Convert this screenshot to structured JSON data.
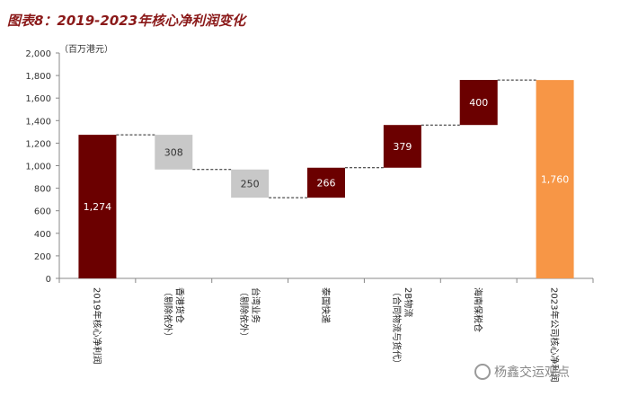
{
  "figure": {
    "title": "图表8：2019-2023年核心净利润变化",
    "unit": "（百万港元）",
    "watermark": "杨鑫交运观点"
  },
  "chart_data": {
    "type": "waterfall",
    "ylim": [
      0,
      2000
    ],
    "yticks": [
      "0",
      "200",
      "400",
      "600",
      "800",
      "1,000",
      "1,200",
      "1,400",
      "1,600",
      "1,800",
      "2,000"
    ],
    "ytick_values": [
      0,
      200,
      400,
      600,
      800,
      1000,
      1200,
      1400,
      1600,
      1800,
      2000
    ],
    "bars": [
      {
        "category": "2019年核心净利润",
        "base": 0,
        "top": 1274,
        "label": "1,274",
        "color": "#6b0000",
        "label_color": "#ffffff"
      },
      {
        "category": "香港货仓（剔除依外）",
        "base": 966,
        "top": 1274,
        "label": "308",
        "color": "#c8c8c8",
        "label_color": "#333333"
      },
      {
        "category": "台湾业务（剔除依外）",
        "base": 716,
        "top": 966,
        "label": "250",
        "color": "#c8c8c8",
        "label_color": "#333333"
      },
      {
        "category": "泰国快递",
        "base": 716,
        "top": 982,
        "label": "266",
        "color": "#6b0000",
        "label_color": "#ffffff"
      },
      {
        "category": "2B物流（合同物流与货代）",
        "base": 982,
        "top": 1361,
        "label": "379",
        "color": "#6b0000",
        "label_color": "#ffffff"
      },
      {
        "category": "海南保税仓",
        "base": 1361,
        "top": 1761,
        "label": "400",
        "color": "#6b0000",
        "label_color": "#ffffff"
      },
      {
        "category": "2023年公司核心净利润",
        "base": 0,
        "top": 1760,
        "label": "1,760",
        "color": "#f79646",
        "label_color": "#ffffff"
      }
    ]
  }
}
